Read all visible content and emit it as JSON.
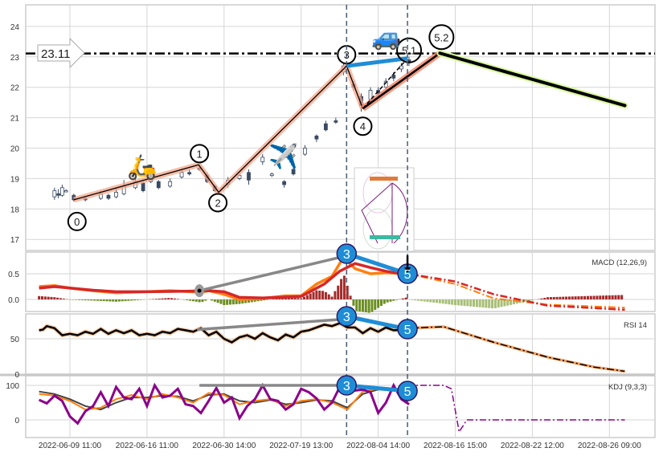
{
  "chart_data": {
    "type": "candlestick-with-indicators",
    "x_ticks": [
      "2022-06-09 11:00",
      "2022-06-16 11:00",
      "2022-06-30 14:00",
      "2022-07-19 13:00",
      "2022-08-04 14:00",
      "2022-08-16 15:00",
      "2022-08-22 12:00",
      "2022-08-26 09:00"
    ],
    "grid": true,
    "price": {
      "ylim": [
        16.7,
        24.7
      ],
      "yticks": [
        "17",
        "18",
        "19",
        "20",
        "21",
        "22",
        "23",
        "24"
      ],
      "level_line": {
        "value": 23.11,
        "label": "23.11"
      },
      "candles": [
        [
          -0.2,
          18.4,
          18.6,
          18.7,
          18.3
        ],
        [
          -0.15,
          18.5,
          18.45,
          18.65,
          18.35
        ],
        [
          -0.1,
          18.45,
          18.7,
          18.8,
          18.4
        ],
        [
          -0.05,
          18.6,
          18.6,
          18.65,
          18.55
        ],
        [
          0.05,
          18.45,
          18.3,
          18.5,
          18.25
        ],
        [
          0.2,
          18.35,
          18.3,
          18.4,
          18.25
        ],
        [
          0.4,
          18.35,
          18.5,
          18.6,
          18.3
        ],
        [
          0.5,
          18.45,
          18.35,
          18.5,
          18.3
        ],
        [
          0.6,
          18.4,
          18.55,
          18.7,
          18.35
        ],
        [
          0.7,
          18.5,
          18.75,
          18.95,
          18.45
        ],
        [
          0.85,
          18.7,
          18.9,
          19.0,
          18.65
        ],
        [
          0.95,
          18.85,
          18.6,
          18.9,
          18.55
        ],
        [
          1.05,
          18.9,
          19.0,
          19.1,
          18.85
        ],
        [
          1.15,
          18.9,
          18.7,
          18.95,
          18.65
        ],
        [
          1.3,
          18.75,
          18.9,
          19.0,
          18.7
        ],
        [
          1.45,
          19.05,
          19.2,
          19.3,
          19.0
        ],
        [
          1.55,
          19.2,
          19.15,
          19.3,
          19.1
        ],
        [
          1.68,
          19.35,
          19.3,
          19.45,
          19.25
        ],
        [
          1.78,
          19.1,
          18.9,
          19.2,
          18.85
        ],
        [
          1.88,
          18.75,
          18.6,
          18.8,
          18.55
        ],
        [
          2.05,
          18.8,
          18.95,
          19.05,
          18.7
        ],
        [
          2.2,
          19.0,
          19.1,
          19.15,
          18.95
        ],
        [
          2.32,
          19.2,
          18.95,
          19.3,
          18.8
        ],
        [
          2.5,
          19.55,
          19.7,
          19.8,
          19.45
        ],
        [
          2.62,
          19.1,
          19.15,
          19.2,
          19.05
        ],
        [
          2.78,
          18.9,
          18.8,
          18.95,
          18.7
        ],
        [
          2.9,
          19.3,
          19.15,
          19.35,
          19.1
        ],
        [
          3.05,
          19.8,
          20.0,
          20.1,
          19.75
        ],
        [
          3.2,
          20.4,
          20.3,
          20.45,
          20.2
        ],
        [
          3.32,
          20.8,
          20.6,
          20.9,
          20.55
        ],
        [
          3.45,
          20.9,
          20.85,
          21.0,
          20.8
        ],
        [
          3.55,
          22.5,
          22.7,
          22.8,
          22.4
        ],
        [
          3.68,
          22.1,
          22.0,
          22.2,
          21.9
        ],
        [
          3.78,
          21.7,
          21.4,
          21.8,
          21.2
        ],
        [
          3.9,
          21.6,
          21.9,
          22.0,
          21.5
        ],
        [
          4.0,
          21.9,
          21.8,
          22.0,
          21.7
        ],
        [
          4.1,
          22.0,
          22.2,
          22.3,
          21.9
        ],
        [
          4.2,
          22.4,
          22.3,
          22.5,
          22.2
        ],
        [
          4.3,
          22.6,
          22.7,
          22.8,
          22.5
        ],
        [
          4.4,
          22.9,
          22.8,
          23.0,
          22.7
        ]
      ],
      "wave_points": [
        {
          "label": "0",
          "x": 0.05,
          "y": 18.3
        },
        {
          "label": "1",
          "x": 1.67,
          "y": 19.45
        },
        {
          "label": "2",
          "x": 1.93,
          "y": 18.55
        },
        {
          "label": "3",
          "x": 3.59,
          "y": 22.7
        },
        {
          "label": "4",
          "x": 3.8,
          "y": 21.3
        },
        {
          "label": "5.1",
          "x": 4.38,
          "y": 22.95
        },
        {
          "label": "5.2",
          "x": 4.8,
          "y": 23.12
        }
      ],
      "projection_end": {
        "x": 7.2,
        "y": 21.4
      },
      "marker_lines": [
        3.59,
        4.38
      ],
      "icons": [
        "scooter-icon",
        "airplane-icon",
        "car-icon"
      ]
    },
    "macd": {
      "label": "MACD (12,26,9)",
      "yticks": [
        "0.0",
        "0.5"
      ],
      "ylim": [
        -0.25,
        0.9
      ],
      "macd": [
        [
          -0.4,
          0.25
        ],
        [
          -0.2,
          0.27
        ],
        [
          0,
          0.22
        ],
        [
          0.3,
          0.17
        ],
        [
          0.6,
          0.13
        ],
        [
          1,
          0.15
        ],
        [
          1.3,
          0.17
        ],
        [
          1.7,
          0.14
        ],
        [
          1.8,
          0.17
        ],
        [
          2.0,
          0.1
        ],
        [
          2.2,
          0.0
        ],
        [
          2.5,
          0.02
        ],
        [
          2.8,
          0.07
        ],
        [
          3.0,
          0.07
        ],
        [
          3.2,
          0.3
        ],
        [
          3.4,
          0.45
        ],
        [
          3.55,
          0.82
        ],
        [
          3.7,
          0.6
        ],
        [
          3.9,
          0.5
        ],
        [
          4.1,
          0.52
        ],
        [
          4.38,
          0.5
        ]
      ],
      "signal": [
        [
          -0.4,
          0.22
        ],
        [
          -0.2,
          0.25
        ],
        [
          0.3,
          0.18
        ],
        [
          0.6,
          0.15
        ],
        [
          1,
          0.15
        ],
        [
          1.5,
          0.16
        ],
        [
          1.8,
          0.17
        ],
        [
          2.0,
          0.15
        ],
        [
          2.2,
          0.04
        ],
        [
          2.5,
          0.03
        ],
        [
          3.0,
          0.06
        ],
        [
          3.3,
          0.3
        ],
        [
          3.5,
          0.55
        ],
        [
          3.7,
          0.7
        ],
        [
          3.9,
          0.62
        ],
        [
          4.1,
          0.55
        ],
        [
          4.38,
          0.48
        ]
      ],
      "forecast_macd": [
        [
          4.38,
          0.5
        ],
        [
          5.0,
          0.3
        ],
        [
          5.5,
          0.02
        ],
        [
          6.2,
          -0.1
        ],
        [
          7.2,
          -0.16
        ]
      ],
      "forecast_signal": [
        [
          4.38,
          0.5
        ],
        [
          5.0,
          0.35
        ],
        [
          5.5,
          0.1
        ],
        [
          6.2,
          -0.12
        ],
        [
          7.2,
          -0.2
        ]
      ]
    },
    "rsi": {
      "label": "RSI 14",
      "yticks": [
        "0",
        "50"
      ],
      "ylim": [
        0,
        90
      ],
      "values": [
        [
          -0.4,
          62
        ],
        [
          -0.35,
          63
        ],
        [
          -0.3,
          68
        ],
        [
          -0.2,
          65
        ],
        [
          -0.1,
          55
        ],
        [
          0,
          57
        ],
        [
          0.1,
          55
        ],
        [
          0.2,
          60
        ],
        [
          0.3,
          57
        ],
        [
          0.4,
          64
        ],
        [
          0.5,
          57
        ],
        [
          0.6,
          62
        ],
        [
          0.7,
          58
        ],
        [
          0.8,
          62
        ],
        [
          0.9,
          55
        ],
        [
          1.0,
          57
        ],
        [
          1.1,
          55
        ],
        [
          1.2,
          60
        ],
        [
          1.3,
          58
        ],
        [
          1.4,
          64
        ],
        [
          1.5,
          62
        ],
        [
          1.6,
          60
        ],
        [
          1.7,
          65
        ],
        [
          1.8,
          55
        ],
        [
          1.9,
          60
        ],
        [
          2.0,
          50
        ],
        [
          2.1,
          45
        ],
        [
          2.2,
          52
        ],
        [
          2.3,
          55
        ],
        [
          2.4,
          50
        ],
        [
          2.5,
          58
        ],
        [
          2.6,
          52
        ],
        [
          2.7,
          48
        ],
        [
          2.8,
          56
        ],
        [
          2.9,
          52
        ],
        [
          3.0,
          60
        ],
        [
          3.1,
          62
        ],
        [
          3.2,
          66
        ],
        [
          3.3,
          70
        ],
        [
          3.4,
          68
        ],
        [
          3.5,
          72
        ],
        [
          3.6,
          66
        ],
        [
          3.7,
          66
        ],
        [
          3.8,
          58
        ],
        [
          3.9,
          65
        ],
        [
          4.0,
          60
        ],
        [
          4.1,
          66
        ],
        [
          4.2,
          62
        ],
        [
          4.38,
          63
        ]
      ],
      "forecast": [
        [
          4.38,
          65
        ],
        [
          4.85,
          67
        ],
        [
          5.5,
          45
        ],
        [
          6.2,
          24
        ],
        [
          6.8,
          10
        ],
        [
          7.2,
          4
        ]
      ]
    },
    "kdj": {
      "label": "KDJ (9,3,3)",
      "yticks": [
        "0",
        "100"
      ],
      "ylim": [
        -45,
        110
      ],
      "J": [
        58,
        48,
        70,
        55,
        10,
        -10,
        25,
        40,
        80,
        40,
        95,
        65,
        60,
        90,
        40,
        100,
        65,
        70,
        90,
        45,
        40,
        20,
        55,
        92,
        50,
        65,
        5,
        40,
        60,
        100,
        60,
        55,
        30,
        45,
        90,
        80,
        62,
        30,
        50,
        95,
        105,
        85,
        88,
        80,
        20,
        50,
        100,
        60,
        45
      ],
      "K": [
        75,
        70,
        55,
        30,
        35,
        60,
        72,
        60,
        75,
        65,
        50,
        78,
        72,
        45,
        55,
        60,
        40,
        55,
        60,
        50,
        30,
        82,
        90,
        90,
        60
      ],
      "D": [
        82,
        75,
        60,
        40,
        30,
        50,
        65,
        65,
        70,
        68,
        55,
        72,
        75,
        55,
        50,
        58,
        45,
        50,
        58,
        55,
        35,
        75,
        88,
        92,
        70
      ],
      "forecast": [
        [
          4.38,
          100
        ],
        [
          4.85,
          100
        ],
        [
          4.95,
          90
        ],
        [
          5.05,
          -35
        ],
        [
          5.15,
          0
        ],
        [
          7.2,
          0
        ]
      ]
    },
    "annotations": {
      "start_label": "3",
      "end_label": "5"
    },
    "colors": {
      "orange": "#ff7f0e",
      "red": "#d62728",
      "purple": "#8b008b",
      "blue_marker": "#1f8dd6",
      "wave_shadow": "#f4a58a",
      "projection_shadow": "#d9f99d",
      "hist_pos": "#a52a2a",
      "hist_neg": "#6b8e23"
    }
  }
}
